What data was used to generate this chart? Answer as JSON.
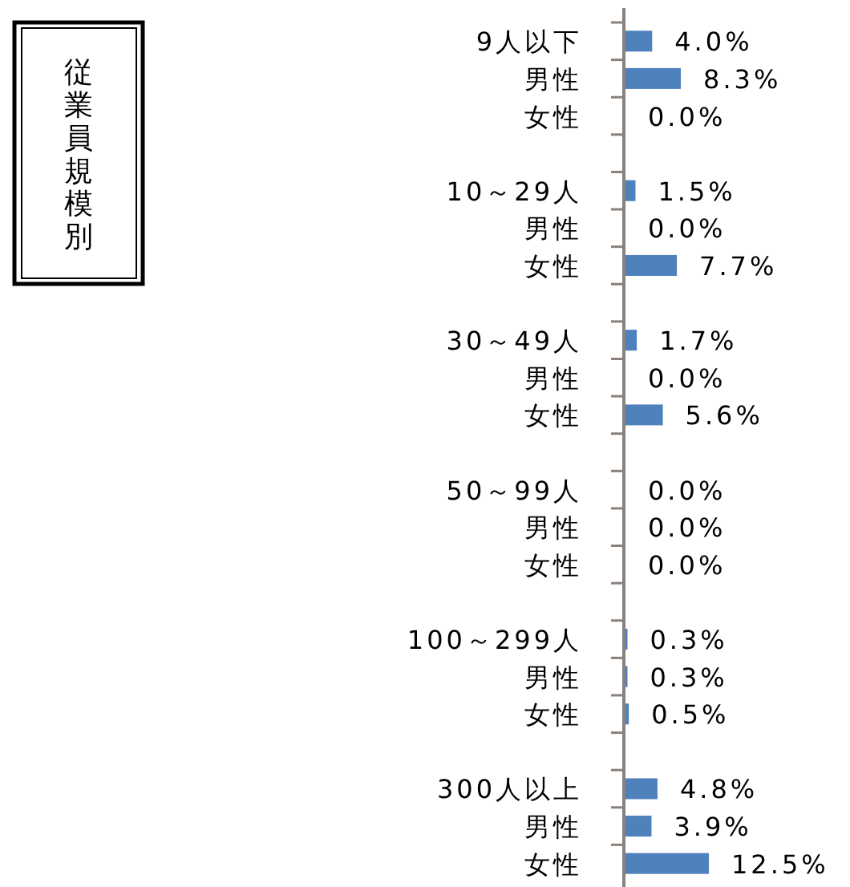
{
  "chart_data": {
    "type": "bar",
    "orientation": "horizontal",
    "annotations": [
      "従業員規模別"
    ],
    "categories": [
      "9人以下",
      "男性",
      "女性",
      null,
      "10～29人",
      "男性",
      "女性",
      null,
      "30～49人",
      "男性",
      "女性",
      null,
      "50～99人",
      "男性",
      "女性",
      null,
      "100～299人",
      "男性",
      "女性",
      null,
      "300人以上",
      "男性",
      "女性"
    ],
    "values": [
      4.0,
      8.3,
      0.0,
      null,
      1.5,
      0.0,
      7.7,
      null,
      1.7,
      0.0,
      5.6,
      null,
      0.0,
      0.0,
      0.0,
      null,
      0.3,
      0.3,
      0.5,
      null,
      4.8,
      3.9,
      12.5
    ],
    "value_labels": [
      "4.0%",
      "8.3%",
      "0.0%",
      null,
      "1.5%",
      "0.0%",
      "7.7%",
      null,
      "1.7%",
      "0.0%",
      "5.6%",
      null,
      "0.0%",
      "0.0%",
      "0.0%",
      null,
      "0.3%",
      "0.3%",
      "0.5%",
      null,
      "4.8%",
      "3.9%",
      "12.5%"
    ],
    "color": "#4f81bd"
  }
}
